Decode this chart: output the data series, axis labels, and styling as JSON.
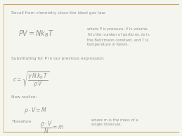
{
  "background_color": "#f5f5f0",
  "border_color": "#c8a850",
  "text_color": "#909090",
  "title_text": "Recall from chemistry class the ideal gas law:",
  "line1_formula": "$PV = Nk_B T$",
  "line1_note": "where P is pressure, V is volume,\nN is the number of particles, $k_B$ is\nthe Boltzmann constant, and T is\ntemperature in Kelvin.",
  "line2_text": "Substituting for P in our previous expression:",
  "line2_formula": "$c = \\sqrt{\\dfrac{\\gamma\\, N\\, k_B\\, T}{\\rho\\, V}}$",
  "line3_text": "Now realize:",
  "line3_formula": "$\\rho \\cdot V = M$",
  "line4_text": "Therefore",
  "line4_formula": "$\\dfrac{\\rho \\cdot V}{N} = m$",
  "line4_note": "where m is the mass of a\nsingle molecule."
}
